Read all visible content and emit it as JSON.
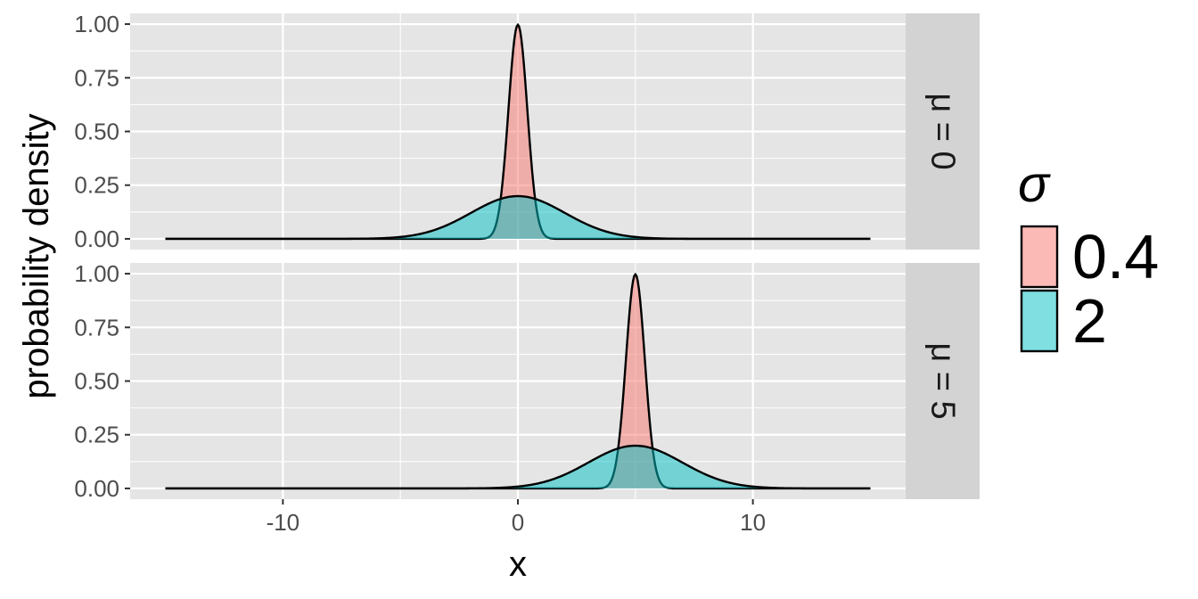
{
  "chart_data": {
    "type": "area",
    "xlabel": "x",
    "ylabel": "probability density",
    "xlim": [
      -16.5,
      16.5
    ],
    "ylim": [
      -0.05,
      1.05
    ],
    "x_domain": [
      -15,
      15
    ],
    "x_ticks": [
      -10,
      0,
      10
    ],
    "x_tick_labels": [
      "-10",
      "0",
      "10"
    ],
    "y_ticks": [
      0,
      0.25,
      0.5,
      0.75,
      1
    ],
    "y_tick_labels": [
      "0.00",
      "0.25",
      "0.50",
      "0.75",
      "1.00"
    ],
    "grid": true,
    "legend": {
      "title": "σ",
      "position": "right",
      "entries": [
        {
          "label": "0.4",
          "color": "#F8766D"
        },
        {
          "label": "2",
          "color": "#00BFC4"
        }
      ]
    },
    "facets": [
      {
        "strip": "μ = 0",
        "mu": 0
      },
      {
        "strip": "μ = 5",
        "mu": 5
      }
    ],
    "series": [
      {
        "sigma": 0.4,
        "peak": 0.997,
        "color": "#F8766D"
      },
      {
        "sigma": 2,
        "peak": 0.199,
        "color": "#00BFC4"
      }
    ],
    "colors": {
      "panel_bg": "#e5e5e5",
      "strip_bg": "#d3d3d3",
      "grid": "#ffffff",
      "outline": "#000000"
    }
  }
}
